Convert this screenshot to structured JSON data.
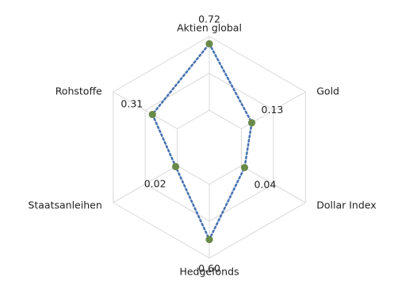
{
  "chart_data": {
    "type": "radar",
    "title": "",
    "axes": [
      "Aktien global",
      "Gold",
      "Dollar Index",
      "Hedgefonds",
      "Staatsanleihen",
      "Rohstoffe"
    ],
    "series": [
      {
        "values": [
          0.72,
          0.13,
          0.04,
          0.6,
          0.02,
          0.31
        ],
        "value_labels": [
          "0.72",
          "0.13",
          "0.04",
          "0.60",
          "0.02",
          "0.31"
        ]
      }
    ],
    "rlim": [
      -0.4,
      0.8
    ],
    "rings": [
      -0.4,
      0.0,
      0.4,
      0.8
    ],
    "grid": true,
    "legend": "none",
    "colors": {
      "grid": "#d9d9d9",
      "line": "#4a73b0",
      "marker": "#6a8a4a"
    }
  }
}
